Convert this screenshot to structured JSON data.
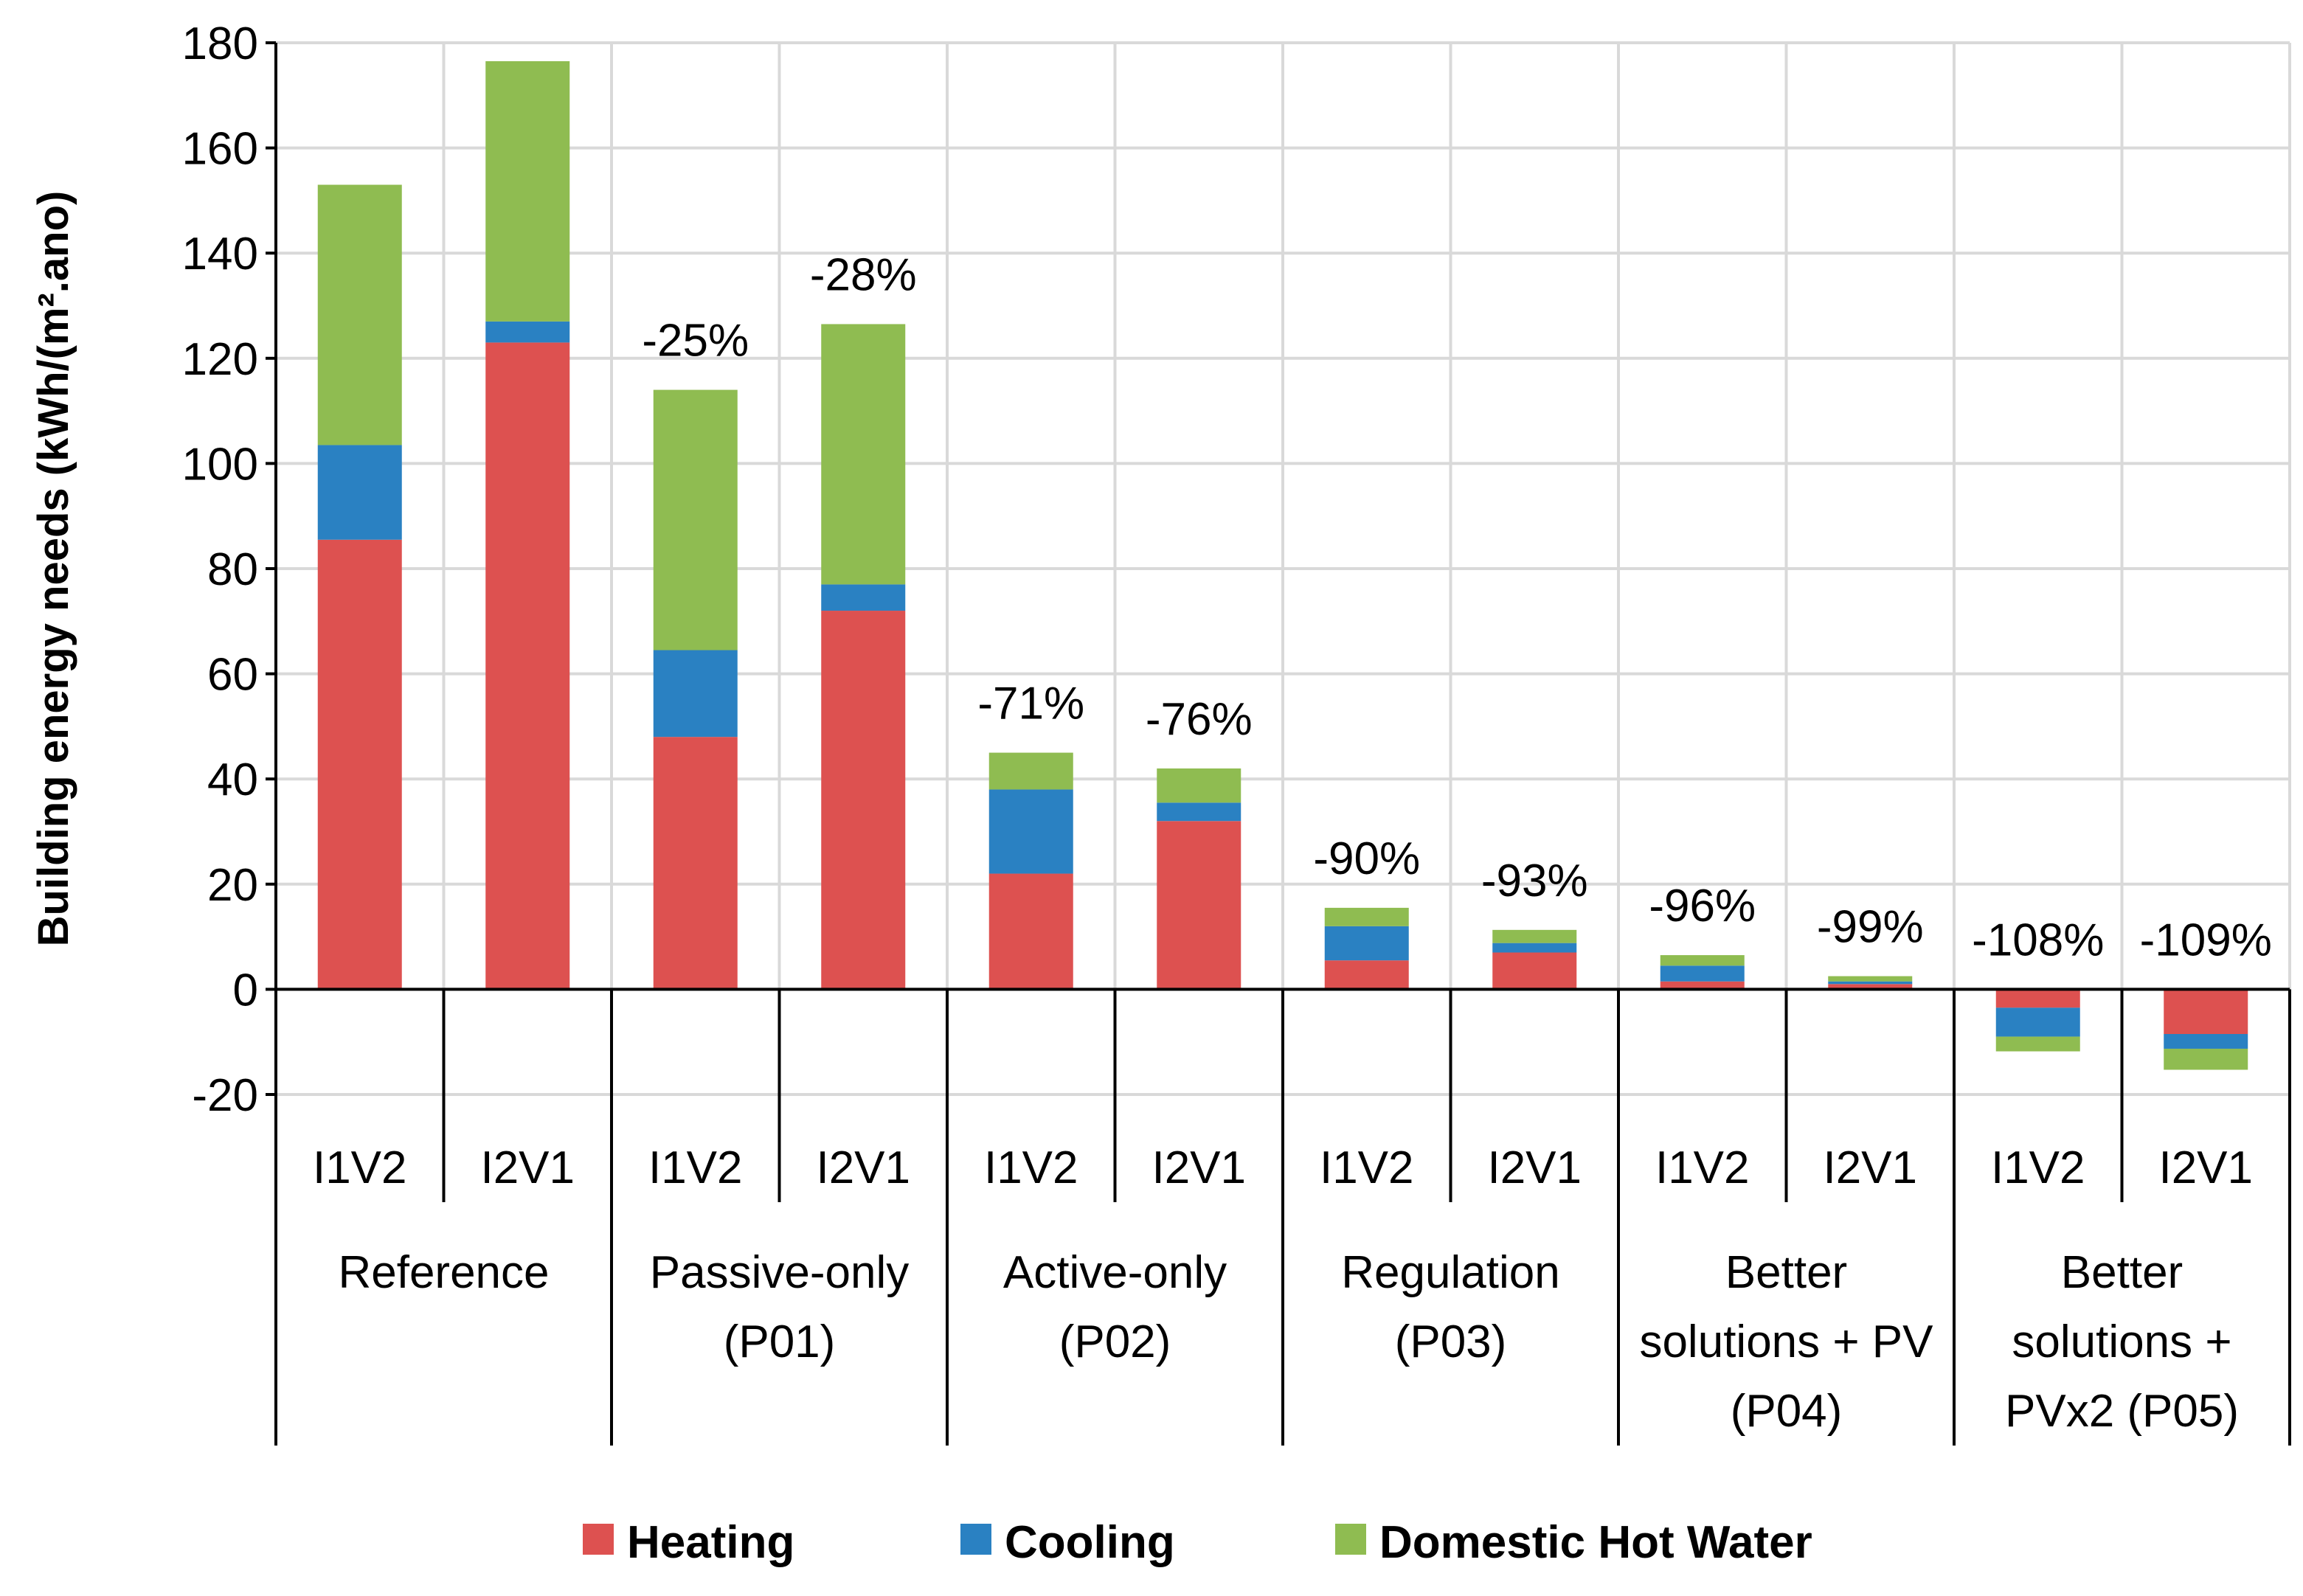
{
  "chart_data": {
    "type": "bar",
    "stacked": true,
    "ylabel": "Building energy needs (kWh/(m².ano)",
    "ylim": [
      -20,
      180
    ],
    "yticks": [
      -20,
      0,
      20,
      40,
      60,
      80,
      100,
      120,
      140,
      160,
      180
    ],
    "grid": true,
    "legend_position": "bottom",
    "colors": {
      "Heating": "#dd5150",
      "Cooling": "#2a81c2",
      "Domestic Hot Water": "#8fbc51"
    },
    "categories": [
      "I1V2",
      "I2V1",
      "I1V2",
      "I2V1",
      "I1V2",
      "I2V1",
      "I1V2",
      "I2V1",
      "I1V2",
      "I2V1",
      "I1V2",
      "I2V1"
    ],
    "groups": [
      {
        "lines": [
          "Reference"
        ]
      },
      {
        "lines": [
          "Passive-only",
          "(P01)"
        ]
      },
      {
        "lines": [
          "Active-only",
          "(P02)"
        ]
      },
      {
        "lines": [
          "Regulation",
          "(P03)"
        ]
      },
      {
        "lines": [
          "Better",
          "solutions + PV",
          "(P04)"
        ]
      },
      {
        "lines": [
          "Better",
          "solutions +",
          "PVx2 (P05)"
        ]
      }
    ],
    "series": [
      {
        "name": "Heating",
        "values": [
          85.5,
          123,
          48,
          72,
          22,
          32,
          5.5,
          7,
          1.5,
          1,
          -3.5,
          -8.5
        ]
      },
      {
        "name": "Cooling",
        "values": [
          18,
          4,
          16.5,
          5,
          16,
          3.5,
          6.5,
          1.8,
          3,
          0.5,
          -5.5,
          -2.8
        ]
      },
      {
        "name": "Domestic Hot Water",
        "values": [
          49.5,
          49.5,
          49.5,
          49.5,
          7,
          6.5,
          3.5,
          2.5,
          2,
          1,
          -2.8,
          -4
        ]
      }
    ],
    "data_labels": [
      "",
      "",
      "-25%",
      "-28%",
      "-71%",
      "-76%",
      "-90%",
      "-93%",
      "-96%",
      "-99%",
      "-108%",
      "-109%"
    ]
  }
}
